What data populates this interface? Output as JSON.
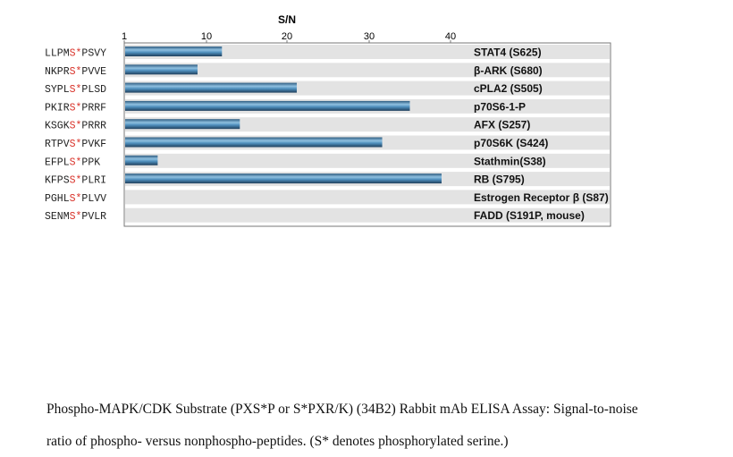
{
  "chart_data": {
    "type": "bar",
    "orientation": "horizontal",
    "xlabel": "S/N",
    "xticks": [
      "1",
      "10",
      "20",
      "30",
      "40"
    ],
    "xlim": [
      0,
      50
    ],
    "peptides": [
      {
        "pre": "LLPM",
        "site": "S*",
        "post": "PSVY"
      },
      {
        "pre": "NKPR",
        "site": "S*",
        "post": "PVVE"
      },
      {
        "pre": "SYPL",
        "site": "S*",
        "post": "PLSD"
      },
      {
        "pre": "PKIR",
        "site": "S*",
        "post": "PRRF"
      },
      {
        "pre": "KSGK",
        "site": "S*",
        "post": "PRRR"
      },
      {
        "pre": "RTPV",
        "site": "S*",
        "post": "PVKF"
      },
      {
        "pre": "EFPL",
        "site": "S*",
        "post": "PPK"
      },
      {
        "pre": "KFPS",
        "site": "S*",
        "post": "PLRI"
      },
      {
        "pre": "PGHL",
        "site": "S*",
        "post": "PLVV"
      },
      {
        "pre": "SENM",
        "site": "S*",
        "post": "PVLR"
      }
    ],
    "categories": [
      "STAT4 (S625)",
      "β-ARK (S680)",
      "cPLA2 (S505)",
      "p70S6-1-P",
      "AFX (S257)",
      "p70S6K (S424)",
      "Stathmin(S38)",
      "RB (S795)",
      "Estrogen Receptor β (S87)",
      "FADD (S191P, mouse)"
    ],
    "values": [
      11.9,
      8.9,
      21.1,
      35,
      14.1,
      31.6,
      4,
      38.9,
      1,
      1
    ],
    "colors": {
      "bar": "#3d7aa6",
      "row": "#e3e3e3",
      "site": "#d9342b"
    }
  },
  "caption": {
    "line1": "Phospho-MAPK/CDK Substrate (PXS*P or S*PXR/K) (34B2) Rabbit mAb ELISA Assay: Signal-to-noise",
    "line2": "ratio of phospho- versus nonphospho-peptides. (S* denotes phosphorylated serine.)"
  }
}
